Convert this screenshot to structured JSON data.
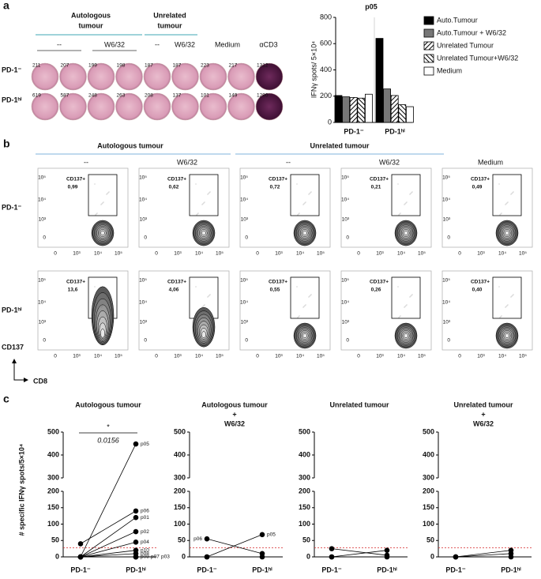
{
  "panel_labels": [
    "a",
    "b",
    "c"
  ],
  "elispot": {
    "groups": [
      {
        "label": [
          "Autologous",
          "tumour"
        ]
      },
      {
        "label": [
          "Unrelated",
          "tumour"
        ]
      }
    ],
    "conditions": [
      "--",
      "W6/32",
      "--",
      "W6/32",
      "Medium",
      "αCD3"
    ],
    "rows": [
      {
        "label": "PD-1⁻",
        "counts": [
          211,
          207,
          199,
          198,
          187,
          187,
          223,
          217,
          1312
        ]
      },
      {
        "label": "PD-1ʰⁱ",
        "counts": [
          619,
          587,
          248,
          263,
          208,
          137,
          101,
          149,
          1290
        ]
      }
    ]
  },
  "chart_data": [
    {
      "type": "bar",
      "title": "p05",
      "y_label": "IFNγ spots/ 5×10⁴",
      "categories": [
        "PD-1⁻",
        "PD-1ʰⁱ"
      ],
      "series": [
        {
          "name": "Auto.Tumour",
          "color": "#000000",
          "pattern": "solid",
          "values": [
            205,
            640
          ]
        },
        {
          "name": "Auto.Tumour + W6/32",
          "color": "#777777",
          "pattern": "solid",
          "values": [
            195,
            255
          ]
        },
        {
          "name": "Unrelated Tumour",
          "color": "#000000",
          "pattern": "diagonal",
          "values": [
            190,
            205
          ]
        },
        {
          "name": "Unrelated Tumour+W6/32",
          "color": "#000000",
          "pattern": "antidiagonal",
          "values": [
            185,
            135
          ]
        },
        {
          "name": "Medium",
          "color": "#ffffff",
          "pattern": "solid",
          "values": [
            215,
            120
          ]
        }
      ],
      "ylim": [
        0,
        800
      ],
      "yticks": [
        0,
        200,
        400,
        600,
        800
      ],
      "legend": "right"
    },
    {
      "type": "line",
      "title": [
        "Autologous tumour"
      ],
      "y_label": "# specific IFNγ spots/5×10⁴",
      "categories": [
        "PD-1⁻",
        "PD-1ʰⁱ"
      ],
      "series": [
        {
          "name": "p05",
          "values": [
            0,
            448
          ]
        },
        {
          "name": "p06",
          "values": [
            40,
            140
          ]
        },
        {
          "name": "p01",
          "values": [
            0,
            120
          ]
        },
        {
          "name": "p02",
          "values": [
            0,
            77
          ]
        },
        {
          "name": "p04",
          "values": [
            0,
            45
          ]
        },
        {
          "name": "p10",
          "values": [
            0,
            20
          ]
        },
        {
          "name": "p08",
          "values": [
            0,
            10
          ]
        },
        {
          "name": "p09",
          "values": [
            0,
            0
          ]
        },
        {
          "name": "p07",
          "values": [
            0,
            0
          ]
        },
        {
          "name": "p03",
          "values": [
            0,
            0
          ]
        }
      ],
      "label_side": "right",
      "annotation": {
        "star": "*",
        "p_value": "0.0156"
      },
      "ylim": [
        0,
        500
      ],
      "yticks": [
        0,
        50,
        100,
        150,
        200,
        300,
        400,
        500
      ],
      "axis_break": [
        200,
        300
      ],
      "threshold": 28,
      "threshold_color": "#d62728"
    },
    {
      "type": "line",
      "title": [
        "Autologous tumour",
        "+",
        "W6/32"
      ],
      "categories": [
        "PD-1⁻",
        "PD-1ʰⁱ"
      ],
      "series": [
        {
          "name": "p06",
          "label_side": "left",
          "values": [
            55,
            10
          ]
        },
        {
          "name": "p05",
          "label_side": "right",
          "values": [
            0,
            68
          ]
        },
        {
          "values": [
            0,
            0
          ]
        }
      ],
      "ylim": [
        0,
        500
      ],
      "yticks": [
        0,
        50,
        100,
        150,
        200,
        300,
        400,
        500
      ],
      "axis_break": [
        200,
        300
      ],
      "threshold": 28,
      "threshold_color": "#d62728"
    },
    {
      "type": "line",
      "title": [
        "Unrelated tumour"
      ],
      "categories": [
        "PD-1⁻",
        "PD-1ʰⁱ"
      ],
      "series": [
        {
          "values": [
            25,
            5
          ]
        },
        {
          "values": [
            0,
            20
          ]
        },
        {
          "values": [
            0,
            0
          ]
        }
      ],
      "ylim": [
        0,
        500
      ],
      "yticks": [
        0,
        50,
        100,
        150,
        200,
        300,
        400,
        500
      ],
      "axis_break": [
        200,
        300
      ],
      "threshold": 28,
      "threshold_color": "#d62728"
    },
    {
      "type": "line",
      "title": [
        "Unrelated tumour",
        "+",
        "W6/32"
      ],
      "categories": [
        "PD-1⁻",
        "PD-1ʰⁱ"
      ],
      "series": [
        {
          "values": [
            0,
            20
          ]
        },
        {
          "values": [
            0,
            10
          ]
        },
        {
          "values": [
            0,
            0
          ]
        }
      ],
      "ylim": [
        0,
        500
      ],
      "yticks": [
        0,
        50,
        100,
        150,
        200,
        300,
        400,
        500
      ],
      "axis_break": [
        200,
        300
      ],
      "threshold": 28,
      "threshold_color": "#d62728"
    }
  ],
  "flow": {
    "groups": [
      "Autologous tumour",
      "Unrelated tumour"
    ],
    "conditions": [
      "--",
      "W6/32",
      "--",
      "W6/32",
      "Medium"
    ],
    "gate_label": "CD137+",
    "rows": [
      {
        "label": "PD-1⁻",
        "gates": [
          "0,99",
          "0,62",
          "0,72",
          "0,21",
          "0,49"
        ]
      },
      {
        "label": "PD-1ʰⁱ",
        "gates": [
          "13,6",
          "4,06",
          "0,55",
          "0,26",
          "0,40"
        ]
      }
    ],
    "x_ticks": [
      "0",
      "10³",
      "10⁴",
      "10⁵"
    ],
    "y_ticks": [
      "0",
      "10³",
      "10⁴",
      "10⁵"
    ],
    "y_axis_label": "CD137",
    "x_axis_label": "CD8"
  }
}
